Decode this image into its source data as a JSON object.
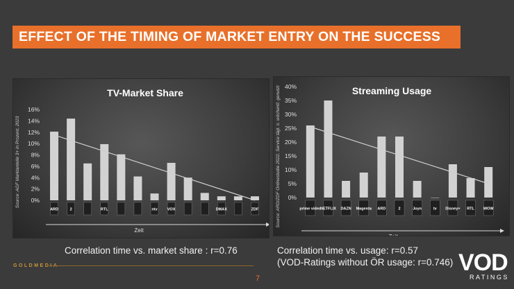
{
  "title": "EFFECT OF THE TIMING OF MARKET ENTRY ON THE SUCCESS",
  "captions": {
    "left": "Correlation time vs. market share : r=0.76",
    "right_line1": "Correlation time vs. usage: r=0.57",
    "right_line2": "(VOD-Ratings without ÖR usage: r=0.746)"
  },
  "footer": {
    "brand": "GOLDMEDIA",
    "page_number": "7",
    "logo_main": "VOD",
    "logo_sub": "RATINGS"
  },
  "colors": {
    "title_bg": "#e8702a",
    "bar": "#d2d2d2",
    "trend": "#cfcfcf",
    "text": "#ffffff",
    "axis_text": "#e0e0e0"
  },
  "chart_data": [
    {
      "type": "bar",
      "title": "TV-Market  Share",
      "source": "Source: AGF Marktanteile 3+ in Prozent, 2023",
      "xlabel": "Zeit",
      "ylabel": "",
      "ylim": [
        0,
        16
      ],
      "y_ticks": [
        "0%",
        "2%",
        "4%",
        "6%",
        "8%",
        "10%",
        "12%",
        "14%",
        "16%"
      ],
      "categories": [
        "Das Erste",
        "ZDF",
        "Sat.1",
        "RTL",
        "ProSieben",
        "Kabel eins",
        "ntv",
        "VOX",
        "n-tv",
        "Welt",
        "DMAX",
        "ZDFneo",
        "ZDFinfo"
      ],
      "logo_labels": [
        "ARD",
        "2",
        "",
        "RTL",
        "",
        "",
        "ntv",
        "VOX",
        "",
        "",
        "DMAX",
        "",
        "ZDF"
      ],
      "values": [
        12.1,
        14.4,
        6.5,
        9.9,
        8.1,
        4.2,
        1.2,
        6.6,
        4.0,
        1.3,
        0.7,
        0.7,
        0.7
      ],
      "trend": {
        "start": 11.5,
        "end": 0.0
      }
    },
    {
      "type": "bar",
      "title": "Streaming  Usage",
      "source": "Source: ARD/ZDF Onlinestudie 2022, Service tägl. o. wöchentl. genutzt",
      "xlabel": "Zeit",
      "ylabel": "",
      "ylim": [
        0,
        40
      ],
      "y_ticks": [
        "0%",
        "5%",
        "10%",
        "15%",
        "20%",
        "25%",
        "30%",
        "35%",
        "40%"
      ],
      "categories": [
        "Prime Video",
        "Netflix",
        "DAZN",
        "MagentaTV",
        "ARD Mediathek",
        "ZDF Mediathek",
        "Joyn",
        "Apple TV+",
        "Disney+",
        "RTL+",
        "WOW"
      ],
      "logo_labels": [
        "prime video",
        "NETFLIX",
        "DAZN",
        "Magenta",
        "ARD",
        "2",
        "Joyn",
        "tv",
        "Disney+",
        "RTL",
        "WOW"
      ],
      "values": [
        26,
        35,
        6,
        9,
        22,
        22,
        6,
        0,
        12,
        7,
        11
      ],
      "trend": {
        "start": 25.5,
        "end": 5.0
      }
    }
  ]
}
